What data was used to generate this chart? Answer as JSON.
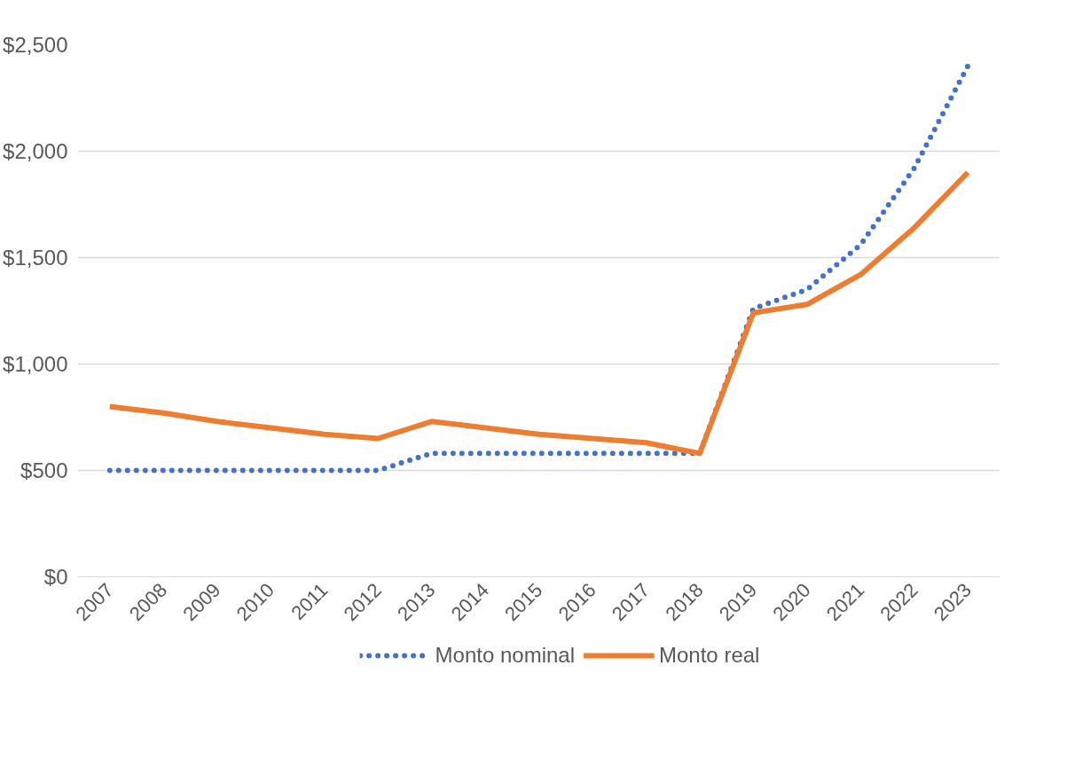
{
  "chart_data": {
    "type": "line",
    "categories": [
      "2007",
      "2008",
      "2009",
      "2010",
      "2011",
      "2012",
      "2013",
      "2014",
      "2015",
      "2016",
      "2017",
      "2018",
      "2019",
      "2020",
      "2021",
      "2022",
      "2023"
    ],
    "series": [
      {
        "name": "Monto nominal",
        "color": "#4472c4",
        "line_style": "dotted",
        "values": [
          500,
          500,
          500,
          500,
          500,
          500,
          580,
          580,
          580,
          580,
          580,
          580,
          1260,
          1350,
          1560,
          1920,
          2400
        ]
      },
      {
        "name": "Monto real",
        "color": "#ed7d31",
        "line_style": "solid",
        "values": [
          800,
          770,
          730,
          700,
          670,
          650,
          730,
          700,
          670,
          650,
          630,
          580,
          1240,
          1280,
          1420,
          1640,
          1900
        ]
      }
    ],
    "ylim": [
      0,
      2500
    ],
    "yticks": [
      {
        "value": 0,
        "label": "$0"
      },
      {
        "value": 500,
        "label": "$500"
      },
      {
        "value": 1000,
        "label": "$1,000"
      },
      {
        "value": 1500,
        "label": "$1,500"
      },
      {
        "value": 2000,
        "label": "$2,000"
      },
      {
        "value": 2500,
        "label": "$2,500"
      }
    ],
    "grid": "y",
    "legend": "bottom",
    "marker": "none"
  }
}
